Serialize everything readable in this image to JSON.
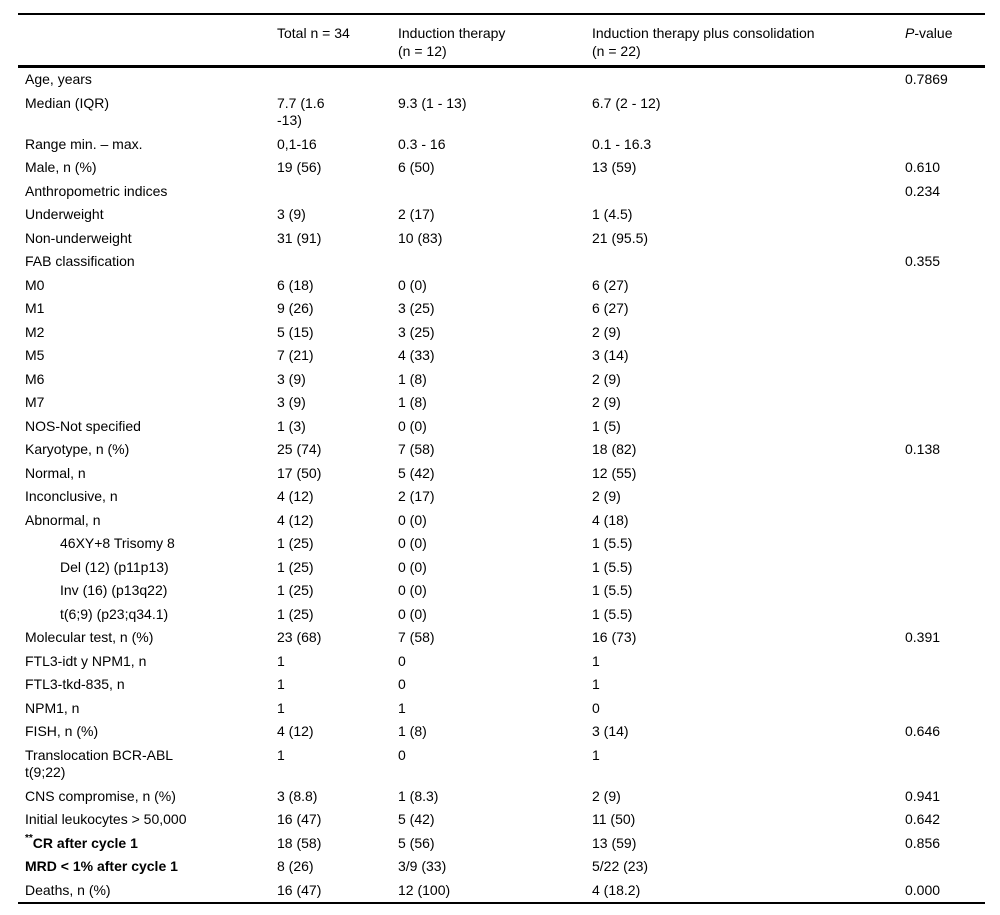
{
  "page": {
    "background": "#ffffff",
    "text_color": "#000000",
    "rule_color": "#000000"
  },
  "table": {
    "header": {
      "col_label": "",
      "col_total": "Total n = 34",
      "col_induction_line1": "Induction therapy",
      "col_induction_line2": "(n = 12)",
      "col_consolidation_line1": "Induction therapy plus consolidation",
      "col_consolidation_line2": "(n = 22)",
      "col_p_italic": "P",
      "col_p_rest": "-value"
    },
    "rows": [
      {
        "label": "Age, years",
        "total": "",
        "induction": "",
        "consolidation": "",
        "p": "0.7869"
      },
      {
        "label": "Median (IQR)",
        "total": "7.7 (1.6\n-13)",
        "induction": "9.3 (1 - 13)",
        "consolidation": "6.7 (2 - 12)",
        "p": ""
      },
      {
        "label": "Range min. – max.",
        "total": "0,1-16",
        "induction": "0.3 - 16",
        "consolidation": "0.1 - 16.3",
        "p": ""
      },
      {
        "label": "Male, n (%)",
        "total": "19 (56)",
        "induction": "6 (50)",
        "consolidation": "13 (59)",
        "p": "0.610"
      },
      {
        "label": "Anthropometric indices",
        "total": "",
        "induction": "",
        "consolidation": "",
        "p": "0.234"
      },
      {
        "label": "Underweight",
        "total": "3 (9)",
        "induction": "2 (17)",
        "consolidation": "1 (4.5)",
        "p": ""
      },
      {
        "label": "Non-underweight",
        "total": "31 (91)",
        "induction": "10 (83)",
        "consolidation": "21 (95.5)",
        "p": ""
      },
      {
        "label": "FAB classification",
        "total": "",
        "induction": "",
        "consolidation": "",
        "p": "0.355"
      },
      {
        "label": "M0",
        "total": "6 (18)",
        "induction": "0 (0)",
        "consolidation": "6 (27)",
        "p": ""
      },
      {
        "label": "M1",
        "total": "9 (26)",
        "induction": "3 (25)",
        "consolidation": "6 (27)",
        "p": ""
      },
      {
        "label": "M2",
        "total": "5 (15)",
        "induction": "3 (25)",
        "consolidation": "2 (9)",
        "p": ""
      },
      {
        "label": "M5",
        "total": "7 (21)",
        "induction": "4 (33)",
        "consolidation": "3 (14)",
        "p": ""
      },
      {
        "label": "M6",
        "total": "3 (9)",
        "induction": "1 (8)",
        "consolidation": "2 (9)",
        "p": ""
      },
      {
        "label": "M7",
        "total": "3 (9)",
        "induction": "1 (8)",
        "consolidation": "2 (9)",
        "p": ""
      },
      {
        "label": "NOS-Not specified",
        "total": "1 (3)",
        "induction": "0 (0)",
        "consolidation": "1 (5)",
        "p": ""
      },
      {
        "label": "Karyotype, n (%)",
        "total": "25 (74)",
        "induction": "7 (58)",
        "consolidation": "18 (82)",
        "p": "0.138"
      },
      {
        "label": "Normal, n",
        "total": "17 (50)",
        "induction": "5 (42)",
        "consolidation": "12 (55)",
        "p": ""
      },
      {
        "label": "Inconclusive, n",
        "total": "4 (12)",
        "induction": "2 (17)",
        "consolidation": "2 (9)",
        "p": ""
      },
      {
        "label": "Abnormal, n",
        "total": "4 (12)",
        "induction": "0 (0)",
        "consolidation": "4 (18)",
        "p": ""
      },
      {
        "label": "46XY+8 Trisomy 8",
        "indent": true,
        "total": "1 (25)",
        "induction": "0 (0)",
        "consolidation": "1 (5.5)",
        "p": ""
      },
      {
        "label": "Del (12) (p11p13)",
        "indent": true,
        "total": "1 (25)",
        "induction": "0 (0)",
        "consolidation": "1 (5.5)",
        "p": ""
      },
      {
        "label": "Inv (16) (p13q22)",
        "indent": true,
        "total": "1 (25)",
        "induction": "0 (0)",
        "consolidation": "1 (5.5)",
        "p": ""
      },
      {
        "label": "t(6;9) (p23;q34.1)",
        "indent": true,
        "total": "1 (25)",
        "induction": "0 (0)",
        "consolidation": "1 (5.5)",
        "p": ""
      },
      {
        "label": "Molecular test, n (%)",
        "total": "23 (68)",
        "induction": "7 (58)",
        "consolidation": "16 (73)",
        "p": "0.391"
      },
      {
        "label": "FTL3-idt y NPM1, n",
        "total": "1",
        "induction": "0",
        "consolidation": "1",
        "p": ""
      },
      {
        "label": "FTL3-tkd-835, n",
        "total": "1",
        "induction": "0",
        "consolidation": "1",
        "p": ""
      },
      {
        "label": "NPM1, n",
        "total": "1",
        "induction": "1",
        "consolidation": "0",
        "p": ""
      },
      {
        "label": "FISH, n (%)",
        "total": "4 (12)",
        "induction": "1 (8)",
        "consolidation": "3 (14)",
        "p": "0.646"
      },
      {
        "label": "Translocation BCR-ABL\nt(9;22)",
        "total": "1",
        "induction": "0",
        "consolidation": "1",
        "p": ""
      },
      {
        "label": "CNS compromise, n (%)",
        "total": "3 (8.8)",
        "induction": "1 (8.3)",
        "consolidation": "2 (9)",
        "p": "0.941"
      },
      {
        "label": "Initial leukocytes > 50,000",
        "total": "16 (47)",
        "induction": "5 (42)",
        "consolidation": "11 (50)",
        "p": "0.642"
      },
      {
        "label": "CR after cycle 1",
        "sup_prefix": "**",
        "bold": true,
        "total": "18 (58)",
        "induction": "5 (56)",
        "consolidation": "13 (59)",
        "p": "0.856"
      },
      {
        "label": "MRD < 1% after cycle 1",
        "bold": true,
        "total": "8 (26)",
        "induction": "3/9 (33)",
        "consolidation": "5/22 (23)",
        "p": ""
      },
      {
        "label": "Deaths, n (%)",
        "total": "16 (47)",
        "induction": "12 (100)",
        "consolidation": "4 (18.2)",
        "p": "0.000"
      }
    ]
  }
}
